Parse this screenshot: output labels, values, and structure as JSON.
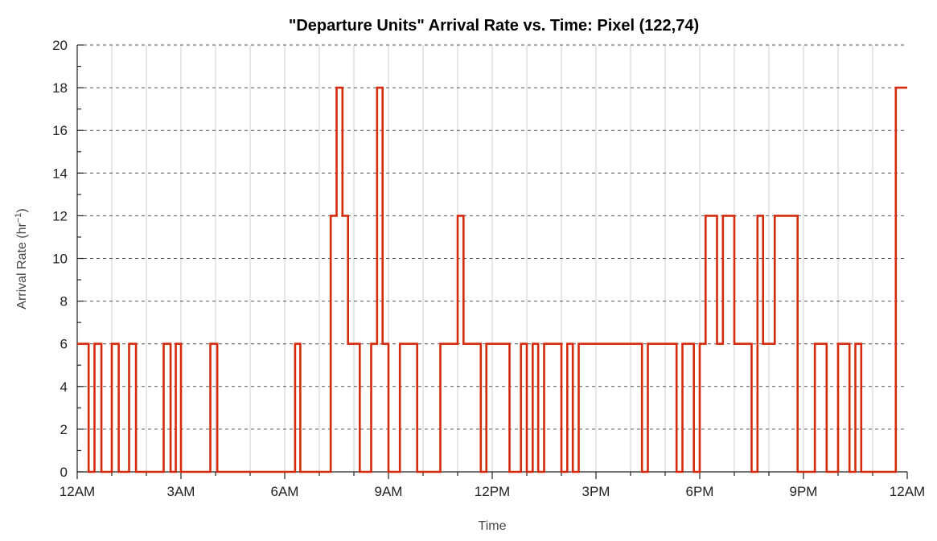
{
  "chart_data": {
    "type": "line",
    "step": true,
    "title": "\"Departure Units\" Arrival Rate vs. Time: Pixel (122,74)",
    "xlabel": "Time",
    "ylabel": "Arrival Rate (hr",
    "ylabel_sup": "−1",
    "ylabel_close": ")",
    "x_unit": "hour",
    "xlim": [
      0,
      24
    ],
    "ylim": [
      0,
      20
    ],
    "y_ticks": [
      0,
      2,
      4,
      6,
      8,
      10,
      12,
      14,
      16,
      18,
      20
    ],
    "x_ticks": [
      {
        "value": 0,
        "label": "12AM"
      },
      {
        "value": 3,
        "label": "3AM"
      },
      {
        "value": 6,
        "label": "6AM"
      },
      {
        "value": 9,
        "label": "9AM"
      },
      {
        "value": 12,
        "label": "12PM"
      },
      {
        "value": 15,
        "label": "3PM"
      },
      {
        "value": 18,
        "label": "6PM"
      },
      {
        "value": 21,
        "label": "9PM"
      },
      {
        "value": 24,
        "label": "12AM"
      }
    ],
    "x_grid_step": 1,
    "y_grid_step": 2,
    "grid": true,
    "colors": {
      "series": "#d62a0c"
    },
    "series": [
      {
        "x": [
          0,
          0.33,
          0.5,
          0.7,
          1.0,
          1.2,
          1.5,
          1.7,
          2.5,
          2.7,
          2.85,
          3.0,
          3.85,
          4.05,
          6.3,
          6.45,
          7.33,
          7.5,
          7.67,
          7.83,
          8.17,
          8.5,
          8.67,
          8.83,
          9.0,
          9.33,
          9.83,
          10.5,
          11.0,
          11.17,
          11.67,
          11.83,
          12.5,
          12.83,
          13.0,
          13.17,
          13.33,
          13.5,
          14.0,
          14.17,
          14.33,
          14.5,
          16.33,
          16.5,
          17.33,
          17.5,
          17.83,
          18.0,
          18.17,
          18.5,
          18.67,
          19.0,
          19.5,
          19.67,
          19.83,
          20.17,
          20.83,
          21.33,
          21.67,
          22.0,
          22.33,
          22.5,
          22.67,
          23.67,
          23.83,
          24.0
        ],
        "y": [
          6,
          0,
          6,
          0,
          6,
          0,
          6,
          0,
          6,
          0,
          6,
          0,
          6,
          0,
          6,
          0,
          12,
          18,
          12,
          6,
          0,
          6,
          18,
          6,
          0,
          6,
          0,
          6,
          12,
          6,
          0,
          6,
          0,
          6,
          0,
          6,
          0,
          6,
          0,
          6,
          0,
          6,
          0,
          6,
          0,
          6,
          0,
          6,
          12,
          6,
          12,
          6,
          0,
          12,
          6,
          12,
          0,
          6,
          0,
          6,
          0,
          6,
          0,
          18,
          18,
          18
        ]
      }
    ]
  }
}
